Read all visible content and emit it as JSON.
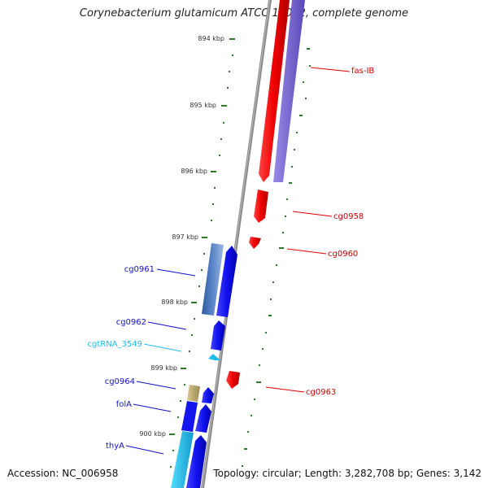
{
  "title": "Corynebacterium glutamicum ATCC 13032, complete genome",
  "footer": {
    "accession": "Accession: NC_006958",
    "topology": "Topology: circular; Length: 3,282,708 bp; Genes: 3,142"
  },
  "ticks": [
    "894 kbp",
    "895 kbp",
    "896 kbp",
    "897 kbp",
    "898 kbp",
    "899 kbp",
    "900 kbp"
  ],
  "gene_labels": {
    "fas_ib": "fas-IB",
    "cg0958": "cg0958",
    "cg0960": "cg0960",
    "cg0961": "cg0961",
    "cg0962": "cg0962",
    "cgtrna_3549": "cgtRNA_3549",
    "cg0963": "cg0963",
    "cg0964": "cg0964",
    "fola": "folA",
    "thya": "thyA"
  },
  "colors": {
    "forward": "#1a1aee",
    "reverse": "#ee1111",
    "trna": "#22bbee",
    "pseudo": "#b8a86a",
    "ticks": "#2a7a2a",
    "backbone": "#888888",
    "ribbon_blue": "#5a7fc0",
    "ribbon_purple": "#7766cc"
  }
}
